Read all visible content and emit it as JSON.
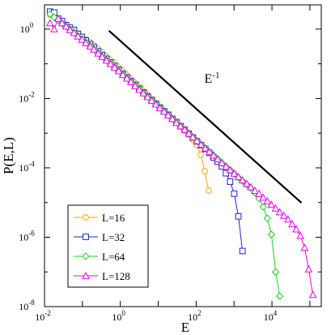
{
  "chart_data": {
    "type": "line",
    "title": "",
    "xlabel": "E",
    "ylabel": "P(E,L)",
    "xscale": "log",
    "yscale": "log",
    "xlim": [
      0.01,
      200000
    ],
    "ylim": [
      1e-08,
      5
    ],
    "x_ticks": [
      {
        "value": 0.01,
        "base": "10",
        "exp": "-2"
      },
      {
        "value": 1,
        "base": "10",
        "exp": "0"
      },
      {
        "value": 100,
        "base": "10",
        "exp": "2"
      },
      {
        "value": 10000,
        "base": "10",
        "exp": "4"
      }
    ],
    "y_ticks": [
      {
        "value": 1,
        "base": "10",
        "exp": "0"
      },
      {
        "value": 0.01,
        "base": "10",
        "exp": "-2"
      },
      {
        "value": 0.0001,
        "base": "10",
        "exp": "-4"
      },
      {
        "value": 1e-06,
        "base": "10",
        "exp": "-6"
      },
      {
        "value": 1e-08,
        "base": "10",
        "exp": "-8"
      }
    ],
    "grid": false,
    "legend_position": "bottom-left",
    "series": [
      {
        "name": "L=16",
        "color": "#ffa500",
        "marker": "circle",
        "points": [
          [
            0.014,
            2.6
          ],
          [
            0.018,
            2.3
          ],
          [
            0.023,
            1.9
          ],
          [
            0.029,
            1.6
          ],
          [
            0.037,
            1.35
          ],
          [
            0.047,
            1.1
          ],
          [
            0.06,
            0.9
          ],
          [
            0.076,
            0.75
          ],
          [
            0.097,
            0.6
          ],
          [
            0.123,
            0.5
          ],
          [
            0.156,
            0.42
          ],
          [
            0.2,
            0.34
          ],
          [
            0.25,
            0.28
          ],
          [
            0.32,
            0.22
          ],
          [
            0.41,
            0.17
          ],
          [
            0.52,
            0.135
          ],
          [
            0.66,
            0.11
          ],
          [
            0.84,
            0.085
          ],
          [
            1.07,
            0.066
          ],
          [
            1.36,
            0.052
          ],
          [
            1.73,
            0.04
          ],
          [
            2.2,
            0.031
          ],
          [
            2.8,
            0.025
          ],
          [
            3.6,
            0.019
          ],
          [
            4.5,
            0.015
          ],
          [
            5.8,
            0.0115
          ],
          [
            7.4,
            0.009
          ],
          [
            9.4,
            0.007
          ],
          [
            12,
            0.0055
          ],
          [
            15.2,
            0.0043
          ],
          [
            19.4,
            0.0034
          ],
          [
            24.6,
            0.0026
          ],
          [
            31.3,
            0.002
          ],
          [
            39.8,
            0.00155
          ],
          [
            50.6,
            0.0012
          ],
          [
            64.4,
            0.0009
          ],
          [
            82,
            0.00065
          ],
          [
            104,
            0.00045
          ],
          [
            133,
            0.00024
          ],
          [
            169,
            8e-05
          ],
          [
            215,
            2.2e-05
          ]
        ]
      },
      {
        "name": "L=32",
        "color": "#2222cc",
        "marker": "square",
        "points": [
          [
            0.014,
            3.2
          ],
          [
            0.018,
            3.0
          ],
          [
            0.023,
            2.0
          ],
          [
            0.029,
            1.7
          ],
          [
            0.037,
            1.3
          ],
          [
            0.047,
            1.1
          ],
          [
            0.06,
            0.95
          ],
          [
            0.076,
            0.73
          ],
          [
            0.097,
            0.6
          ],
          [
            0.123,
            0.47
          ],
          [
            0.16,
            0.37
          ],
          [
            0.2,
            0.3
          ],
          [
            0.26,
            0.23
          ],
          [
            0.33,
            0.18
          ],
          [
            0.43,
            0.14
          ],
          [
            0.55,
            0.11
          ],
          [
            0.7,
            0.087
          ],
          [
            0.9,
            0.068
          ],
          [
            1.16,
            0.052
          ],
          [
            1.49,
            0.041
          ],
          [
            1.9,
            0.032
          ],
          [
            2.45,
            0.025
          ],
          [
            3.15,
            0.0195
          ],
          [
            4.05,
            0.015
          ],
          [
            5.2,
            0.0117
          ],
          [
            6.7,
            0.0091
          ],
          [
            8.6,
            0.0071
          ],
          [
            11,
            0.0055
          ],
          [
            14.2,
            0.0043
          ],
          [
            18.2,
            0.0034
          ],
          [
            23.4,
            0.0026
          ],
          [
            30,
            0.0021
          ],
          [
            38.6,
            0.0016
          ],
          [
            49.6,
            0.00125
          ],
          [
            64,
            0.00097
          ],
          [
            82,
            0.00075
          ],
          [
            105,
            0.00058
          ],
          [
            135,
            0.00045
          ],
          [
            174,
            0.00035
          ],
          [
            224,
            0.00027
          ],
          [
            288,
            0.0002
          ],
          [
            370,
            0.00015
          ],
          [
            476,
            0.00011
          ],
          [
            612,
            7e-05
          ],
          [
            787,
            4e-05
          ],
          [
            1010,
            1.8e-05
          ],
          [
            1300,
            4e-06
          ],
          [
            1670,
            4e-07
          ]
        ]
      },
      {
        "name": "L=64",
        "color": "#22cc22",
        "marker": "diamond",
        "points": [
          [
            0.014,
            2.7
          ],
          [
            0.018,
            2.2
          ],
          [
            0.023,
            1.8
          ],
          [
            0.029,
            1.45
          ],
          [
            0.037,
            1.2
          ],
          [
            0.047,
            0.98
          ],
          [
            0.06,
            0.8
          ],
          [
            0.076,
            0.64
          ],
          [
            0.097,
            0.52
          ],
          [
            0.123,
            0.42
          ],
          [
            0.16,
            0.34
          ],
          [
            0.2,
            0.27
          ],
          [
            0.26,
            0.21
          ],
          [
            0.33,
            0.165
          ],
          [
            0.43,
            0.13
          ],
          [
            0.55,
            0.103
          ],
          [
            0.7,
            0.081
          ],
          [
            0.9,
            0.064
          ],
          [
            1.16,
            0.05
          ],
          [
            1.49,
            0.039
          ],
          [
            1.9,
            0.031
          ],
          [
            2.45,
            0.024
          ],
          [
            3.15,
            0.019
          ],
          [
            4.05,
            0.0148
          ],
          [
            5.2,
            0.0116
          ],
          [
            6.7,
            0.009
          ],
          [
            8.6,
            0.007
          ],
          [
            11,
            0.0055
          ],
          [
            14.2,
            0.0043
          ],
          [
            18.2,
            0.0034
          ],
          [
            23.4,
            0.0026
          ],
          [
            30,
            0.0021
          ],
          [
            38.6,
            0.0016
          ],
          [
            49.6,
            0.00125
          ],
          [
            64,
            0.00097
          ],
          [
            82,
            0.00076
          ],
          [
            105,
            0.0006
          ],
          [
            135,
            0.00047
          ],
          [
            174,
            0.00037
          ],
          [
            224,
            0.00029
          ],
          [
            288,
            0.00023
          ],
          [
            370,
            0.00018
          ],
          [
            476,
            0.00014
          ],
          [
            612,
            0.00011
          ],
          [
            787,
            8.7e-05
          ],
          [
            1010,
            6.8e-05
          ],
          [
            1300,
            5.3e-05
          ],
          [
            1670,
            4.2e-05
          ],
          [
            2150,
            3.3e-05
          ],
          [
            2760,
            2.6e-05
          ],
          [
            3550,
            1.9e-05
          ],
          [
            4570,
            1.3e-05
          ],
          [
            5870,
            7.5e-06
          ],
          [
            7550,
            3.5e-06
          ],
          [
            9700,
            1.2e-06
          ],
          [
            12500,
            1e-07
          ],
          [
            16000,
            2e-08
          ]
        ]
      },
      {
        "name": "L=128",
        "color": "#ee00ee",
        "marker": "triangle",
        "points": [
          [
            0.014,
            1.5
          ],
          [
            0.018,
            1.0
          ],
          [
            0.023,
            2.0
          ],
          [
            0.029,
            1.5
          ],
          [
            0.037,
            1.2
          ],
          [
            0.047,
            0.95
          ],
          [
            0.06,
            0.78
          ],
          [
            0.076,
            0.62
          ],
          [
            0.097,
            0.5
          ],
          [
            0.123,
            0.4
          ],
          [
            0.16,
            0.32
          ],
          [
            0.2,
            0.26
          ],
          [
            0.26,
            0.2
          ],
          [
            0.33,
            0.16
          ],
          [
            0.43,
            0.125
          ],
          [
            0.55,
            0.1
          ],
          [
            0.7,
            0.078
          ],
          [
            0.9,
            0.062
          ],
          [
            1.16,
            0.048
          ],
          [
            1.49,
            0.038
          ],
          [
            1.9,
            0.03
          ],
          [
            2.45,
            0.023
          ],
          [
            3.15,
            0.018
          ],
          [
            4.05,
            0.0142
          ],
          [
            5.2,
            0.0111
          ],
          [
            6.7,
            0.0087
          ],
          [
            8.6,
            0.0068
          ],
          [
            11,
            0.0053
          ],
          [
            14.2,
            0.0042
          ],
          [
            18.2,
            0.0033
          ],
          [
            23.4,
            0.0026
          ],
          [
            30,
            0.002
          ],
          [
            38.6,
            0.0016
          ],
          [
            49.6,
            0.00125
          ],
          [
            64,
            0.00098
          ],
          [
            82,
            0.00077
          ],
          [
            105,
            0.0006
          ],
          [
            135,
            0.00047
          ],
          [
            174,
            0.00037
          ],
          [
            224,
            0.00029
          ],
          [
            288,
            0.00023
          ],
          [
            370,
            0.00018
          ],
          [
            476,
            0.00014
          ],
          [
            612,
            0.00011
          ],
          [
            787,
            8.7e-05
          ],
          [
            1010,
            6.9e-05
          ],
          [
            1300,
            5.5e-05
          ],
          [
            1670,
            4.4e-05
          ],
          [
            2150,
            3.5e-05
          ],
          [
            2760,
            2.8e-05
          ],
          [
            3550,
            2.2e-05
          ],
          [
            4570,
            1.8e-05
          ],
          [
            5870,
            1.4e-05
          ],
          [
            7550,
            1.1e-05
          ],
          [
            9700,
            8.7e-06
          ],
          [
            12500,
            6.8e-06
          ],
          [
            16000,
            5.3e-06
          ],
          [
            20600,
            4.2e-06
          ],
          [
            26500,
            3.3e-06
          ],
          [
            34000,
            2.4e-06
          ],
          [
            43700,
            1.7e-06
          ],
          [
            56200,
            1.1e-06
          ],
          [
            72300,
            5e-07
          ],
          [
            93000,
            1.2e-07
          ],
          [
            120000,
            2.2e-08
          ]
        ]
      }
    ],
    "annotations": [
      {
        "type": "reference-line",
        "label_base": "E",
        "label_exp": "-1",
        "x": [
          0.5,
          60000
        ],
        "y": [
          0.9,
          9.8e-06
        ]
      }
    ]
  }
}
